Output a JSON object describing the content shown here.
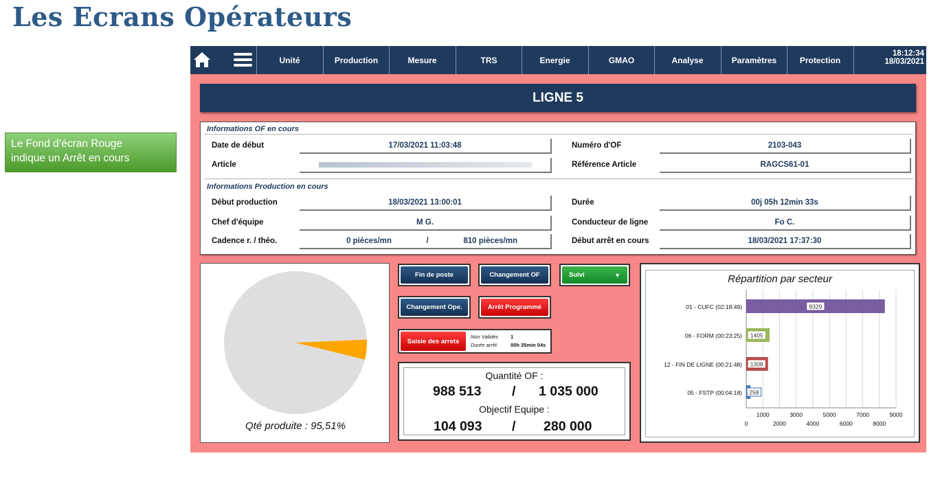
{
  "slide": {
    "title": "Les Ecrans Opérateurs",
    "callout_line1": "Le Fond d’écran Rouge",
    "callout_line2": "indique un Arrêt en cours"
  },
  "colors": {
    "background_stop": "#f88787",
    "navy": "#1f3a5c",
    "accent_orange": "#ffa500"
  },
  "nav": {
    "home_icon": "home-icon",
    "menu_icon": "hamburger-menu-icon",
    "tabs": [
      "Unité",
      "Production",
      "Mesure",
      "TRS",
      "Energie",
      "GMAO",
      "Analyse",
      "Paramètres",
      "Protection"
    ],
    "time": "18:12:34",
    "date": "18/03/2021"
  },
  "header": {
    "line_title": "LIGNE 5"
  },
  "of_info": {
    "section_title": "Informations OF en cours",
    "date_debut_label": "Date de début",
    "date_debut_value": "17/03/2021 11:03:48",
    "article_label": "Article",
    "numero_of_label": "Numéro d'OF",
    "numero_of_value": "2103-043",
    "ref_article_label": "Référence Article",
    "ref_article_value": "RAGCS61-01"
  },
  "prod_info": {
    "section_title": "Informations Production en cours",
    "debut_prod_label": "Début production",
    "debut_prod_value": "18/03/2021 13:00:01",
    "duree_label": "Durée",
    "duree_value": "00j 05h 12min 33s",
    "chef_label": "Chef d'équipe",
    "chef_value": "M       G.",
    "conducteur_label": "Conducteur de ligne",
    "conducteur_value": "Fo        C.",
    "cadence_label": "Cadence r. / théo.",
    "cadence_real": "0 pièces/mn",
    "cadence_sep": "/",
    "cadence_theo": "810 pièces/mn",
    "debut_arret_label": "Début arrêt en cours",
    "debut_arret_value": "18/03/2021 17:37:30"
  },
  "pie": {
    "produced_pct": 95.51,
    "caption": "Qté produite : 95,51%"
  },
  "buttons": {
    "fin_poste": "Fin de poste",
    "changement_of": "Changement OF",
    "suivi": "Suivi",
    "changement_ope": "Changement Ope.",
    "arret_programme": "Arrêt Programmé",
    "saisie_arrets": "Saisie des arrets"
  },
  "stop_info": {
    "non_valides_label": "Non Validés",
    "non_valides_value": "1",
    "duree_arret_label": "Durée arrêt",
    "duree_arret_value": "00h 35min 04s"
  },
  "quantities": {
    "of_caption": "Quantité OF :",
    "of_done": "988 513",
    "of_sep": "/",
    "of_total": "1 035 000",
    "team_caption": "Objectif Equipe :",
    "team_done": "104 093",
    "team_sep": "/",
    "team_total": "280 000"
  },
  "chart_data": {
    "type": "bar",
    "orientation": "horizontal",
    "title": "Répartition par secteur",
    "categories": [
      "01 - CUFC (02:18:49)",
      "06 - FORM (00:23:25)",
      "12 - FIN DE LIGNE (00:21:48)",
      "05 - FSTP (00:04:18)"
    ],
    "values": [
      8329,
      1405,
      1308,
      258
    ],
    "colors": [
      "#6b4c9a",
      "#8fb04a",
      "#b03a3a",
      "#3a6fb0"
    ],
    "xlim": [
      0,
      9000
    ],
    "ticks_upper": [
      "1000",
      "3000",
      "5000",
      "7000",
      "9000"
    ],
    "ticks_lower": [
      "0",
      "2000",
      "4000",
      "6000",
      "8000"
    ],
    "grid": true
  }
}
